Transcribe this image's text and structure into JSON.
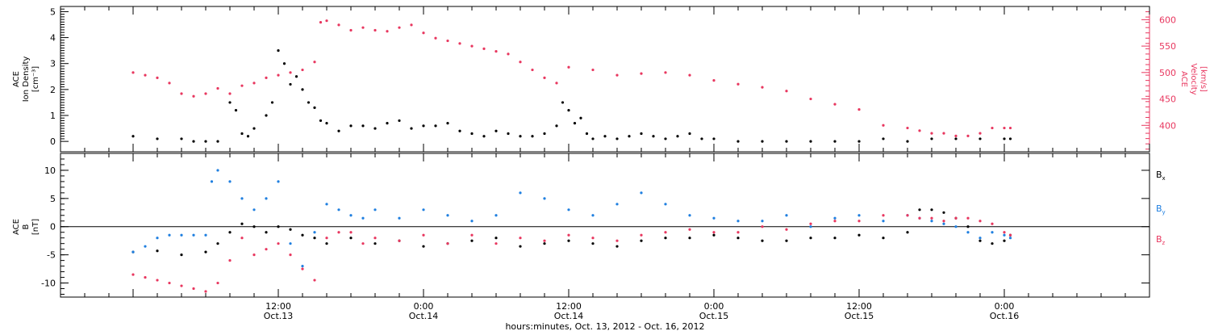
{
  "chart_data": [
    {
      "type": "scatter",
      "panel": "plasma",
      "ylabel": [
        "ACE",
        "Ion Density",
        "[cm⁻³]"
      ],
      "ylim": [
        -0.4,
        5.2
      ],
      "yticks": [
        0,
        1,
        2,
        3,
        4,
        5
      ],
      "y2label": [
        "ACE",
        "Velocity",
        "[km/s]"
      ],
      "y2lim": [
        350,
        625
      ],
      "y2ticks": [
        400,
        450,
        500,
        550,
        600
      ],
      "colors": {
        "density": "#000000",
        "velocity": "#e8375f"
      },
      "series": [
        {
          "name": "",
          "axis": "left",
          "color": "#000000",
          "x_hours": [
            0,
            2,
            4,
            5,
            6,
            7,
            8,
            8.5,
            9,
            9.5,
            10,
            11,
            11.5,
            12,
            12.5,
            13,
            13.5,
            14,
            14.5,
            15,
            15.5,
            16,
            17,
            18,
            19,
            20,
            21,
            22,
            23,
            24,
            25,
            26,
            27,
            28,
            29,
            30,
            31,
            32,
            33,
            34,
            35,
            35.5,
            36,
            36.5,
            37,
            37.5,
            38,
            39,
            40,
            41,
            42,
            43,
            44,
            45,
            46,
            47,
            48,
            50,
            52,
            54,
            56,
            58,
            60,
            62,
            64,
            66,
            68,
            70,
            72,
            72.5
          ],
          "values": [
            0.2,
            0.1,
            0.1,
            0.0,
            0.0,
            0.0,
            1.5,
            1.2,
            0.3,
            0.2,
            0.5,
            1.0,
            1.5,
            3.5,
            3.0,
            2.2,
            2.5,
            2.0,
            1.5,
            1.3,
            0.8,
            0.7,
            0.4,
            0.6,
            0.6,
            0.5,
            0.7,
            0.8,
            0.5,
            0.6,
            0.6,
            0.7,
            0.4,
            0.3,
            0.2,
            0.4,
            0.3,
            0.2,
            0.2,
            0.3,
            0.6,
            1.5,
            1.2,
            0.7,
            0.9,
            0.3,
            0.1,
            0.2,
            0.1,
            0.2,
            0.3,
            0.2,
            0.1,
            0.2,
            0.3,
            0.1,
            0.1,
            0.0,
            0.0,
            0.0,
            0.0,
            0.0,
            0.0,
            0.1,
            0.0,
            0.1,
            0.1,
            0.1,
            0.1,
            0.1
          ]
        },
        {
          "name": "",
          "axis": "right",
          "color": "#e8375f",
          "x_hours": [
            0,
            1,
            2,
            3,
            4,
            5,
            6,
            7,
            8,
            9,
            10,
            11,
            12,
            13,
            14,
            15,
            15.5,
            16,
            17,
            18,
            19,
            20,
            21,
            22,
            23,
            24,
            25,
            26,
            27,
            28,
            29,
            30,
            31,
            32,
            33,
            34,
            35,
            36,
            38,
            40,
            42,
            44,
            46,
            48,
            50,
            52,
            54,
            56,
            58,
            60,
            62,
            64,
            65,
            66,
            67,
            68,
            69,
            70,
            71,
            72,
            72.5
          ],
          "values": [
            500,
            495,
            490,
            480,
            460,
            455,
            460,
            470,
            460,
            475,
            480,
            490,
            495,
            500,
            505,
            520,
            595,
            598,
            590,
            580,
            585,
            580,
            578,
            585,
            590,
            575,
            565,
            560,
            555,
            550,
            545,
            540,
            535,
            520,
            505,
            490,
            480,
            510,
            505,
            495,
            498,
            500,
            495,
            485,
            478,
            472,
            465,
            450,
            440,
            430,
            400,
            395,
            390,
            385,
            385,
            380,
            380,
            385,
            395,
            395,
            395
          ]
        }
      ]
    },
    {
      "type": "scatter",
      "panel": "magnetic field",
      "ylabel": [
        "ACE",
        "B",
        "[nT]"
      ],
      "ylim": [
        -12.5,
        13
      ],
      "yticks": [
        -10,
        -5,
        0,
        5,
        10
      ],
      "zero_line": true,
      "legend_position": "right",
      "legend": [
        "Bx",
        "By",
        "Bz"
      ],
      "colors": {
        "Bx": "#000000",
        "By": "#1f7fe0",
        "Bz": "#e8375f"
      },
      "series": [
        {
          "name": "Bx",
          "color": "#000000",
          "x_hours": [
            0,
            2,
            4,
            6,
            7,
            8,
            9,
            10,
            11,
            12,
            13,
            14,
            15,
            16,
            18,
            20,
            22,
            24,
            26,
            28,
            30,
            32,
            34,
            36,
            38,
            40,
            42,
            44,
            46,
            48,
            50,
            52,
            54,
            56,
            58,
            60,
            62,
            64,
            65,
            66,
            67,
            68,
            69,
            70,
            71,
            72,
            72.5
          ],
          "values": [
            -4.5,
            -4.3,
            -5.0,
            -4.5,
            -3.0,
            -1.0,
            0.5,
            0.0,
            -1.0,
            0.0,
            -0.5,
            -1.5,
            -2.0,
            -3.0,
            -2.0,
            -3.0,
            -2.5,
            -3.5,
            -3.0,
            -2.5,
            -2.0,
            -3.5,
            -3.0,
            -2.5,
            -3.0,
            -3.5,
            -2.5,
            -2.0,
            -2.0,
            -1.5,
            -2.0,
            -2.5,
            -2.5,
            -2.0,
            -2.0,
            -1.5,
            -2.0,
            -1.0,
            3.0,
            3.0,
            2.5,
            1.5,
            0.0,
            -2.5,
            -3.0,
            -2.5,
            -1.5
          ]
        },
        {
          "name": "By",
          "color": "#1f7fe0",
          "x_hours": [
            0,
            1,
            2,
            3,
            4,
            5,
            6,
            6.5,
            7,
            8,
            9,
            10,
            11,
            12,
            13,
            14,
            15,
            16,
            17,
            18,
            19,
            20,
            22,
            24,
            26,
            28,
            30,
            32,
            34,
            36,
            38,
            40,
            42,
            44,
            46,
            48,
            50,
            52,
            54,
            56,
            58,
            60,
            62,
            64,
            65,
            66,
            67,
            68,
            69,
            70,
            71,
            72,
            72.5
          ],
          "values": [
            -4.5,
            -3.5,
            -2.0,
            -1.5,
            -1.5,
            -1.5,
            -1.5,
            8.0,
            10.0,
            8.0,
            5.0,
            3.0,
            5.0,
            8.0,
            -3.0,
            -7.0,
            -1.0,
            4.0,
            3.0,
            2.0,
            1.5,
            3.0,
            1.5,
            3.0,
            2.0,
            1.0,
            2.0,
            6.0,
            5.0,
            3.0,
            2.0,
            4.0,
            6.0,
            4.0,
            2.0,
            1.5,
            1.0,
            1.0,
            2.0,
            0.0,
            1.5,
            2.0,
            1.0,
            2.0,
            1.5,
            1.0,
            0.5,
            0.0,
            -1.0,
            -2.0,
            -1.0,
            -1.5,
            -2.0
          ]
        },
        {
          "name": "Bz",
          "color": "#e8375f",
          "x_hours": [
            0,
            1,
            2,
            3,
            4,
            5,
            6,
            7,
            8,
            9,
            10,
            11,
            12,
            13,
            14,
            15,
            16,
            17,
            18,
            19,
            20,
            22,
            24,
            26,
            28,
            30,
            32,
            34,
            36,
            38,
            40,
            42,
            44,
            46,
            48,
            50,
            52,
            54,
            56,
            58,
            60,
            62,
            64,
            65,
            66,
            67,
            68,
            69,
            70,
            71,
            72,
            72.5
          ],
          "values": [
            -8.5,
            -9.0,
            -9.5,
            -10.0,
            -10.5,
            -11.0,
            -11.5,
            -10.0,
            -6.0,
            -2.0,
            -5.0,
            -4.0,
            -3.0,
            -5.0,
            -7.5,
            -9.5,
            -2.0,
            -1.0,
            -1.0,
            -3.0,
            -2.0,
            -2.5,
            -1.5,
            -3.0,
            -1.5,
            -3.0,
            -2.0,
            -2.5,
            -1.5,
            -2.0,
            -2.5,
            -1.5,
            -1.0,
            -0.5,
            -1.0,
            -1.0,
            0.0,
            -0.5,
            0.5,
            1.0,
            1.0,
            2.0,
            2.0,
            1.5,
            1.5,
            1.0,
            1.5,
            1.5,
            1.0,
            0.5,
            -1.0,
            -1.5
          ]
        }
      ]
    }
  ],
  "x_axis": {
    "tick_labels": [
      {
        "hours": 12,
        "time": "12:00",
        "date": "Oct.13"
      },
      {
        "hours": 24,
        "time": "0:00",
        "date": "Oct.14"
      },
      {
        "hours": 36,
        "time": "12:00",
        "date": "Oct.14"
      },
      {
        "hours": 48,
        "time": "0:00",
        "date": "Oct.15"
      },
      {
        "hours": 60,
        "time": "12:00",
        "date": "Oct.15"
      },
      {
        "hours": 72,
        "time": "0:00",
        "date": "Oct.16"
      }
    ],
    "xlabel": "hours:minutes, Oct. 13, 2012 - Oct. 16, 2012"
  },
  "legend_labels": {
    "bx": {
      "base": "B",
      "sub": "x"
    },
    "by": {
      "base": "B",
      "sub": "y"
    },
    "bz": {
      "base": "B",
      "sub": "z"
    }
  }
}
